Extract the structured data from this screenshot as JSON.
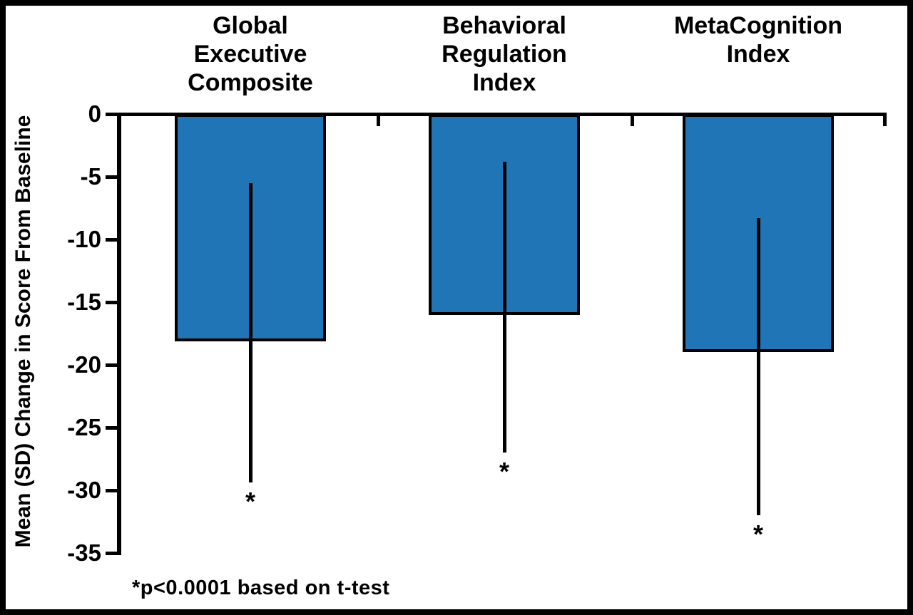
{
  "chart_data": {
    "type": "bar",
    "title": "",
    "xlabel": "",
    "ylabel": "Mean (SD) Change in Score From Baseline",
    "categories": [
      "Global\nExecutive\nComposite",
      "Behavioral\nRegulation\nIndex",
      "MetaCognition\nIndex"
    ],
    "values": [
      -18.1,
      -16.0,
      -19.0
    ],
    "error_bars": {
      "top": [
        -5.5,
        -3.8,
        -8.3
      ],
      "bottom": [
        -29.4,
        -27.0,
        -32.0
      ]
    },
    "significance_markers": [
      "*",
      "*",
      "*"
    ],
    "yticks": [
      0,
      -5,
      -10,
      -15,
      -20,
      -25,
      -30,
      -35
    ],
    "ylim": [
      -35,
      0
    ],
    "grid": false,
    "legend": "none",
    "bar_color": "#2075B6",
    "axis_color": "#000000",
    "footnote": "*p<0.0001 based on t-test"
  }
}
